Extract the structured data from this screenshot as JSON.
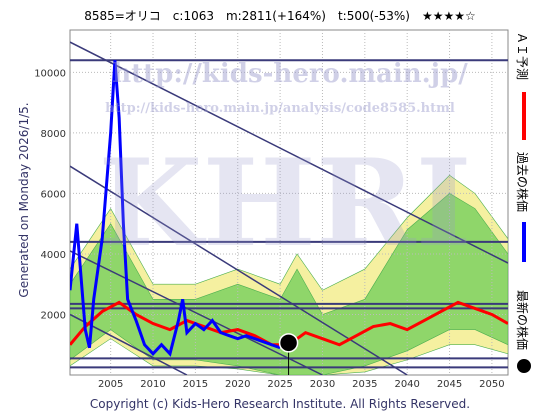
{
  "chart_data": {
    "type": "line",
    "title": "8585=オリコ　c:1063　m:2811(+164%)　t:500(-53%)　★★★★☆",
    "side_note": "Generated on Monday 2026/1/5.",
    "copyright": "Copyright (c) Kids-Hero Research Institute. All Rights Reserved.",
    "watermarks": [
      "http://kids-hero.main.jp/",
      "http://kids-hero.main.jp/analysis/code8585.html",
      "KHRI"
    ],
    "xlim": [
      2000.2,
      2051.9
    ],
    "ylim": [
      0,
      11400
    ],
    "xticks": [
      2005,
      2010,
      2015,
      2020,
      2025,
      2030,
      2035,
      2040,
      2045,
      2050
    ],
    "yticks": [
      2000,
      4000,
      6000,
      8000,
      10000
    ],
    "grid": true,
    "bands": [
      {
        "color": "#f5f0a0",
        "x": [
          2000.2,
          2005,
          2010,
          2015,
          2020,
          2025,
          2027,
          2030,
          2035,
          2040,
          2045,
          2048,
          2051.9
        ],
        "lower": [
          300,
          1200,
          300,
          300,
          200,
          0,
          0,
          0,
          100,
          500,
          1000,
          1000,
          700
        ],
        "upper": [
          3500,
          5500,
          3000,
          3000,
          3500,
          3000,
          4000,
          2800,
          3500,
          5200,
          6600,
          6000,
          4500
        ]
      },
      {
        "color": "#8fd66a",
        "x": [
          2000.2,
          2005,
          2010,
          2015,
          2020,
          2025,
          2027,
          2030,
          2035,
          2040,
          2045,
          2048,
          2051.9
        ],
        "lower": [
          500,
          1500,
          500,
          500,
          300,
          0,
          0,
          0,
          300,
          800,
          1500,
          1500,
          1000
        ],
        "upper": [
          3000,
          5000,
          2500,
          2500,
          3000,
          2500,
          3500,
          2000,
          2500,
          4800,
          6000,
          5500,
          4000
        ]
      }
    ],
    "hlines": [
      10400,
      4400,
      2350,
      2200,
      550,
      250
    ],
    "trend_lines": [
      {
        "x": [
          2000.2,
          2051.9
        ],
        "values": [
          11000,
          3700
        ]
      },
      {
        "x": [
          2000.2,
          2040
        ],
        "values": [
          6900,
          0
        ]
      },
      {
        "x": [
          2000.2,
          2030
        ],
        "values": [
          4100,
          0
        ]
      },
      {
        "x": [
          2000.2,
          2014
        ],
        "values": [
          2000,
          0
        ]
      }
    ],
    "series": [
      {
        "name": "ＡＩ予測",
        "color": "#ff0000",
        "x": [
          2000.2,
          2002,
          2004,
          2006,
          2008,
          2010,
          2012,
          2014,
          2016,
          2018,
          2020,
          2022,
          2024,
          2026,
          2028,
          2030,
          2032,
          2034,
          2036,
          2038,
          2040,
          2042,
          2044,
          2046,
          2048,
          2050,
          2051.9
        ],
        "values": [
          1000,
          1600,
          2100,
          2400,
          2000,
          1700,
          1500,
          1800,
          1600,
          1400,
          1500,
          1300,
          1000,
          1000,
          1400,
          1200,
          1000,
          1300,
          1600,
          1700,
          1500,
          1800,
          2100,
          2400,
          2200,
          2000,
          1700
        ]
      },
      {
        "name": "過去の株価",
        "color": "#0000ff",
        "x": [
          2000.2,
          2001,
          2002,
          2002.5,
          2003,
          2004,
          2005,
          2005.5,
          2006,
          2006.5,
          2007,
          2008,
          2009,
          2010,
          2011,
          2012,
          2013,
          2013.5,
          2014,
          2015,
          2016,
          2017,
          2018,
          2019,
          2020,
          2021,
          2022,
          2023,
          2024,
          2025
        ],
        "values": [
          2800,
          5000,
          1500,
          900,
          2500,
          4500,
          8000,
          10400,
          8500,
          5000,
          2500,
          1800,
          1000,
          700,
          1000,
          700,
          1800,
          2500,
          1400,
          1700,
          1500,
          1800,
          1400,
          1300,
          1200,
          1300,
          1200,
          1100,
          1000,
          900
        ]
      }
    ],
    "latest": {
      "name": "最新の株価",
      "x": 2026,
      "value": 1063,
      "color": "#000000"
    }
  }
}
